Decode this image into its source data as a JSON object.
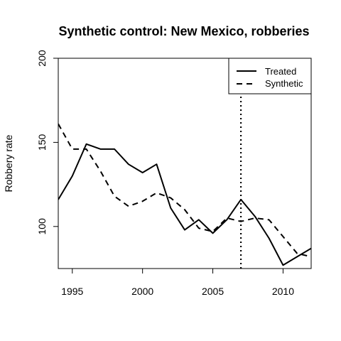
{
  "chart_data": {
    "type": "line",
    "title": "Synthetic control: New Mexico, robberies",
    "xlabel": "",
    "ylabel": "Robbery rate",
    "xlim": [
      1994,
      2012
    ],
    "ylim": [
      75,
      200
    ],
    "x_ticks": [
      1995,
      2000,
      2005,
      2010
    ],
    "y_ticks": [
      100,
      150,
      200
    ],
    "x_tick_labels": [
      "1995",
      "2000",
      "2005",
      "2010"
    ],
    "y_tick_labels": [
      "100",
      "150",
      "200"
    ],
    "x": [
      1994,
      1995,
      1996,
      1997,
      1998,
      1999,
      2000,
      2001,
      2002,
      2003,
      2004,
      2005,
      2006,
      2007,
      2008,
      2009,
      2010,
      2011,
      2012
    ],
    "series": [
      {
        "name": "Treated",
        "style": "solid",
        "values": [
          116,
          130,
          149,
          146,
          146,
          137,
          132,
          137,
          111,
          98,
          104,
          96,
          104,
          116,
          106,
          93,
          77,
          82,
          87
        ]
      },
      {
        "name": "Synthetic",
        "style": "dashed",
        "values": [
          161,
          146,
          146,
          133,
          118,
          112,
          115,
          120,
          117,
          110,
          99,
          97,
          105,
          103,
          105,
          104,
          94,
          84,
          82
        ]
      }
    ],
    "vline": {
      "x": 2007,
      "style": "dotted"
    },
    "legend_position": "top-right",
    "grid": false,
    "line_color": "#000000"
  }
}
